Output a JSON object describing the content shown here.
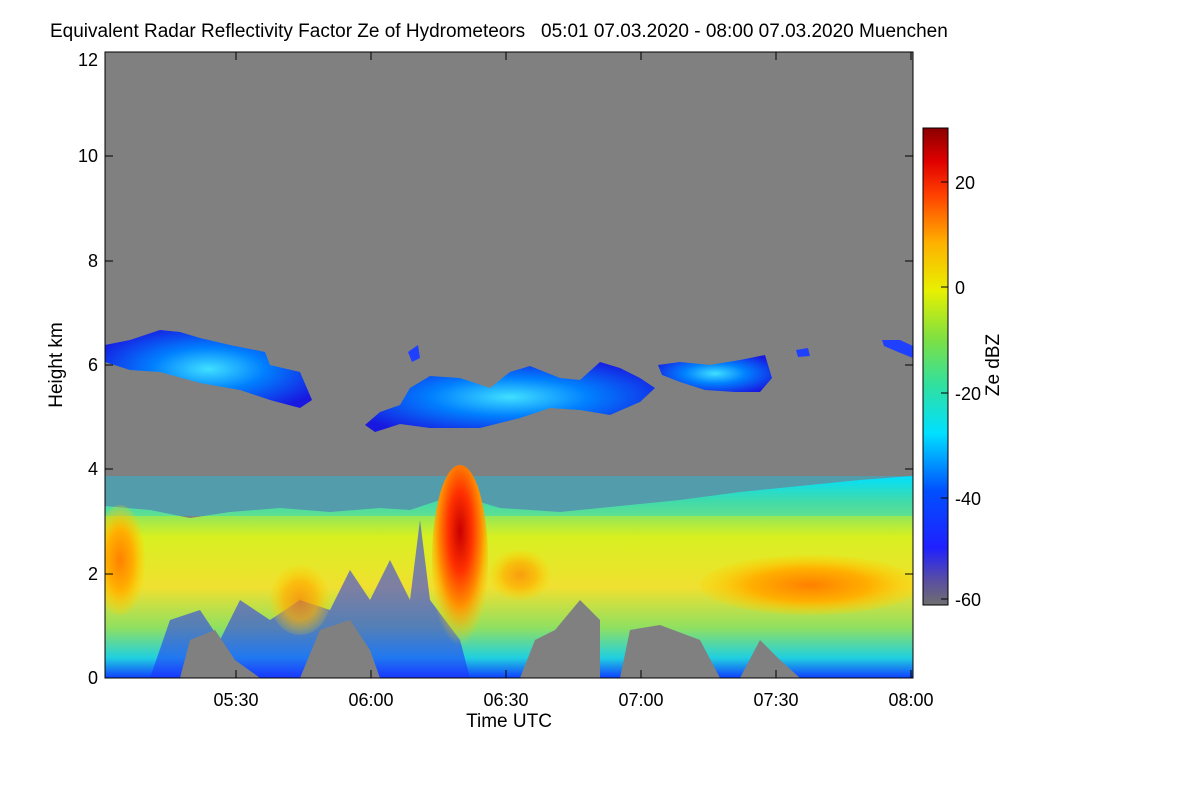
{
  "chart_data": {
    "type": "heatmap",
    "title": "Equivalent Radar Reflectivity Factor Ze of Hydrometeors",
    "time_range_label": "05:01 07.03.2020 - 08:00 07.03.2020",
    "location": "Muenchen",
    "xlabel": "Time UTC",
    "ylabel": "Height km",
    "colorbar_label": "Ze dBZ",
    "x_range": [
      "05:01",
      "08:00"
    ],
    "x_ticks": [
      "05:30",
      "06:00",
      "06:30",
      "07:00",
      "07:30",
      "08:00"
    ],
    "y_range": [
      0,
      12
    ],
    "y_ticks": [
      "0",
      "2",
      "4",
      "6",
      "8",
      "10",
      "12"
    ],
    "colorbar_range": [
      -62,
      30
    ],
    "colorbar_ticks": [
      "-60",
      "-40",
      "-20",
      "0",
      "20"
    ],
    "colormap": "jet",
    "background_color": "#808080",
    "features": [
      {
        "name": "lower precipitating cloud layer",
        "time_start": "05:01",
        "time_end": "08:00",
        "height_top_km": [
          3.3,
          3.8
        ],
        "ze_range_dbz": [
          -40,
          20
        ]
      },
      {
        "name": "upper ice cloud layer",
        "time_start": "05:01",
        "time_end": "08:00",
        "height_km": [
          4.8,
          6.6
        ],
        "ze_range_dbz": [
          -45,
          -25
        ]
      },
      {
        "name": "reflectivity maximum",
        "time": "06:20",
        "height_km": [
          0,
          3.5
        ],
        "ze_dbz": 20
      }
    ]
  }
}
